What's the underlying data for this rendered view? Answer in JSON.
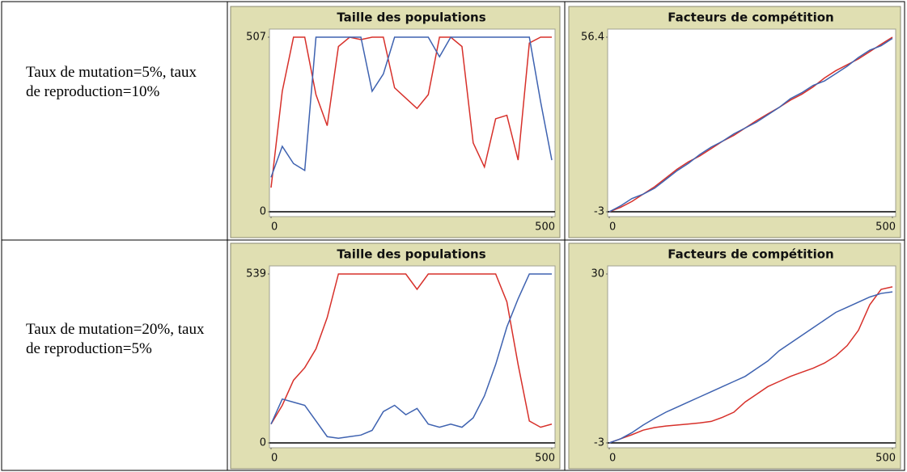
{
  "rows": [
    {
      "label": "Taux de mutation=5%, taux de reproduction=10%"
    },
    {
      "label": "Taux de mutation=20%, taux de reproduction=5%"
    }
  ],
  "chart_data": [
    {
      "type": "line",
      "title": "Taille des populations",
      "x": [
        0,
        20,
        40,
        60,
        80,
        100,
        120,
        140,
        160,
        180,
        200,
        220,
        240,
        260,
        280,
        300,
        320,
        340,
        360,
        380,
        400,
        420,
        440,
        460,
        480,
        500
      ],
      "xlim": [
        0,
        500
      ],
      "xticks": [
        0,
        500
      ],
      "ylim": [
        0,
        507
      ],
      "yticks": [
        0,
        507
      ],
      "series": [
        {
          "color": "#d7302a",
          "values": [
            70,
            350,
            507,
            507,
            340,
            250,
            480,
            507,
            500,
            507,
            507,
            360,
            330,
            300,
            340,
            507,
            507,
            480,
            200,
            130,
            270,
            280,
            150,
            490,
            507,
            507
          ]
        },
        {
          "color": "#3e62b0",
          "values": [
            100,
            190,
            140,
            120,
            507,
            507,
            507,
            507,
            507,
            350,
            400,
            507,
            507,
            507,
            507,
            450,
            507,
            507,
            507,
            507,
            507,
            507,
            507,
            507,
            320,
            150
          ]
        }
      ]
    },
    {
      "type": "line",
      "title": "Facteurs de compétition",
      "x": [
        0,
        20,
        40,
        60,
        80,
        100,
        120,
        140,
        160,
        180,
        200,
        220,
        240,
        260,
        280,
        300,
        320,
        340,
        360,
        380,
        400,
        420,
        440,
        460,
        480,
        500
      ],
      "xlim": [
        0,
        500
      ],
      "xticks": [
        0,
        500
      ],
      "ylim": [
        -3,
        56.4
      ],
      "yticks": [
        -3,
        56.4
      ],
      "series": [
        {
          "color": "#d7302a",
          "values": [
            -3,
            -1.5,
            0.5,
            3,
            5.5,
            8.5,
            11.5,
            14,
            16,
            18.5,
            21,
            23,
            25.5,
            28,
            30.3,
            32.5,
            35,
            37,
            39.5,
            42.5,
            45,
            47,
            49,
            51.5,
            54,
            56.4
          ]
        },
        {
          "color": "#3e62b0",
          "values": [
            -3,
            -1,
            1.5,
            3,
            5,
            8,
            11,
            13.5,
            16.5,
            19,
            21,
            23.5,
            25.5,
            27.5,
            30,
            32.5,
            35.5,
            37.5,
            40,
            41.5,
            44,
            46.5,
            49.5,
            52,
            53.5,
            56
          ]
        }
      ]
    },
    {
      "type": "line",
      "title": "Taille des populations",
      "x": [
        0,
        20,
        40,
        60,
        80,
        100,
        120,
        140,
        160,
        180,
        200,
        220,
        240,
        260,
        280,
        300,
        320,
        340,
        360,
        380,
        400,
        420,
        440,
        460,
        480,
        500
      ],
      "xlim": [
        0,
        500
      ],
      "xticks": [
        0,
        500
      ],
      "ylim": [
        0,
        539
      ],
      "yticks": [
        0,
        539
      ],
      "series": [
        {
          "color": "#d7302a",
          "values": [
            60,
            120,
            200,
            240,
            300,
            400,
            539,
            539,
            539,
            539,
            539,
            539,
            539,
            490,
            539,
            539,
            539,
            539,
            539,
            539,
            539,
            450,
            250,
            70,
            50,
            60
          ]
        },
        {
          "color": "#3e62b0",
          "values": [
            60,
            140,
            130,
            120,
            70,
            20,
            15,
            20,
            25,
            40,
            100,
            120,
            90,
            110,
            60,
            50,
            60,
            50,
            80,
            150,
            250,
            370,
            460,
            539,
            539,
            539
          ]
        }
      ]
    },
    {
      "type": "line",
      "title": "Facteurs de compétition",
      "x": [
        0,
        20,
        40,
        60,
        80,
        100,
        120,
        140,
        160,
        180,
        200,
        220,
        240,
        260,
        280,
        300,
        320,
        340,
        360,
        380,
        400,
        420,
        440,
        460,
        480,
        500
      ],
      "xlim": [
        0,
        500
      ],
      "xticks": [
        0,
        500
      ],
      "ylim": [
        -3,
        30
      ],
      "yticks": [
        -3,
        30
      ],
      "series": [
        {
          "color": "#d7302a",
          "values": [
            -3,
            -2.2,
            -1.4,
            -0.5,
            0,
            0.3,
            0.5,
            0.7,
            0.9,
            1.2,
            2,
            3,
            5,
            6.5,
            8,
            9,
            10,
            10.8,
            11.6,
            12.6,
            14,
            16,
            19,
            24,
            27,
            27.5
          ]
        },
        {
          "color": "#3e62b0",
          "values": [
            -3,
            -2.2,
            -1,
            0.5,
            1.8,
            3,
            4,
            5,
            6,
            7,
            8,
            9,
            10,
            11.5,
            13,
            15,
            16.5,
            18,
            19.5,
            21,
            22.5,
            23.5,
            24.5,
            25.5,
            26.2,
            26.5
          ]
        }
      ]
    }
  ]
}
